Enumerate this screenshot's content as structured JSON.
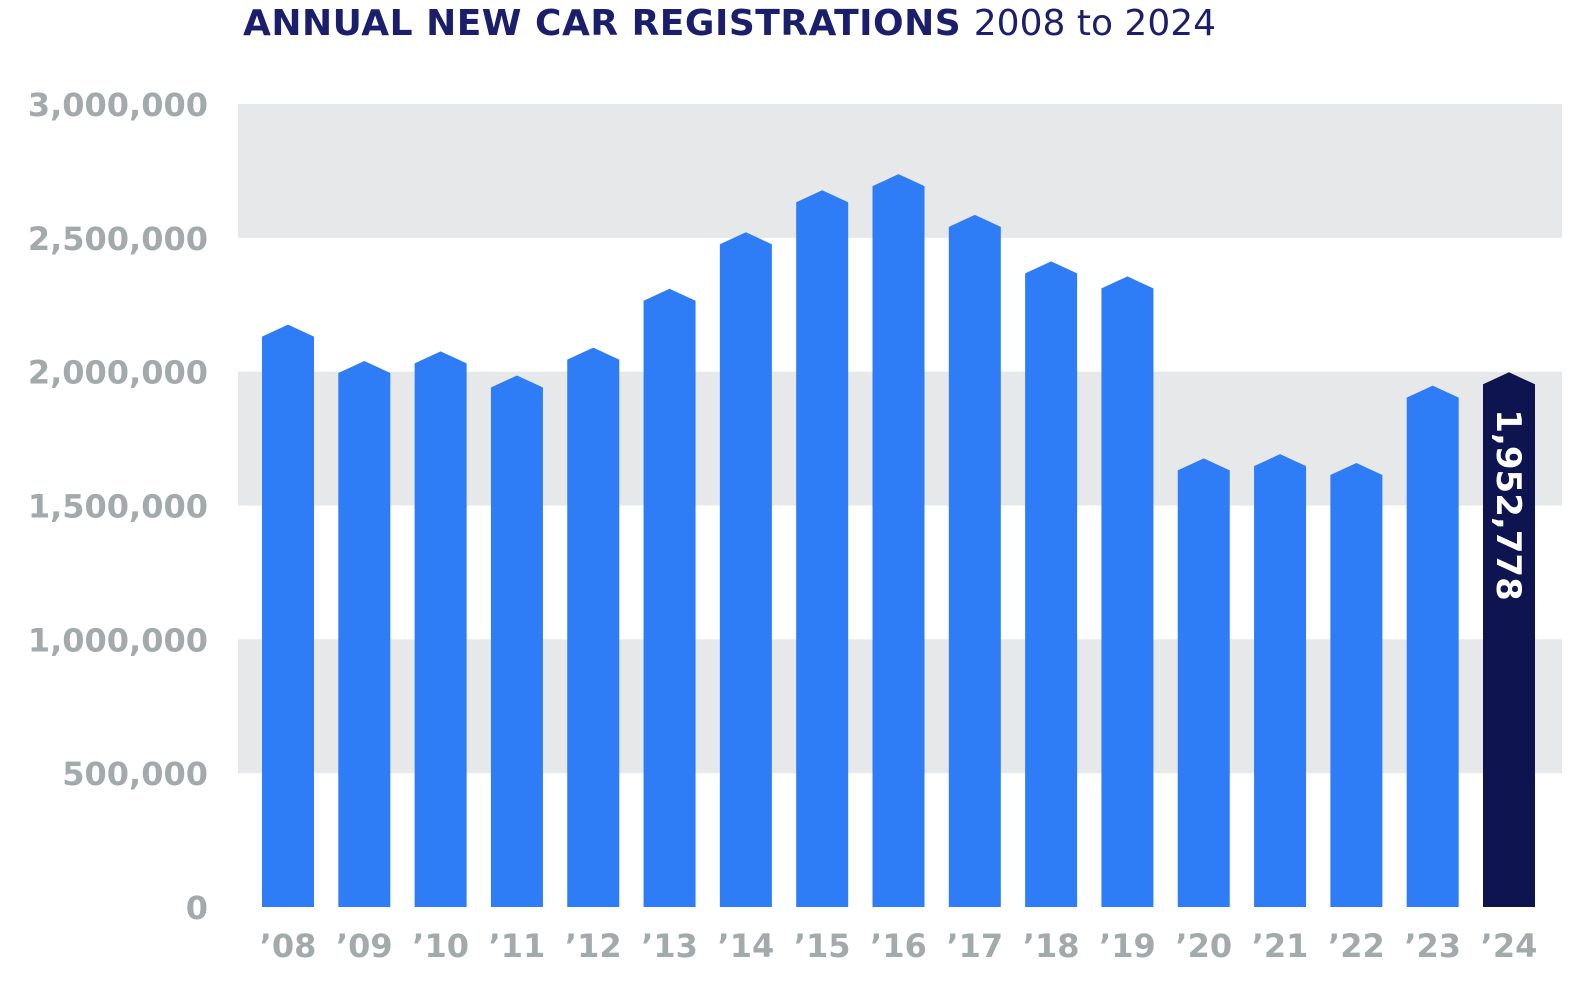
{
  "title": {
    "main": "ANNUAL NEW CAR REGISTRATIONS",
    "sub": "2008 to 2024"
  },
  "chart_data": {
    "type": "bar",
    "categories": [
      "’08",
      "’09",
      "’10",
      "’11",
      "’12",
      "’13",
      "’14",
      "’15",
      "’16",
      "’17",
      "’18",
      "’19",
      "’20",
      "’21",
      "’22",
      "’23",
      "’24"
    ],
    "values": [
      2131000,
      1995000,
      2031000,
      1941000,
      2045000,
      2265000,
      2476000,
      2633000,
      2693000,
      2541000,
      2367000,
      2311000,
      1631000,
      1647000,
      1614000,
      1903000,
      1952778
    ],
    "ylim": [
      0,
      3000000
    ],
    "yticks": [
      "0",
      "500,000",
      "1,000,000",
      "1,500,000",
      "2,000,000",
      "2,500,000",
      "3,000,000"
    ],
    "ytick_values": [
      0,
      500000,
      1000000,
      1500000,
      2000000,
      2500000,
      3000000
    ],
    "grid": "alternating horizontal bands",
    "colors": {
      "bar": "#2f7df6",
      "highlight": "#0d1450",
      "band": "#e6e8e9",
      "axis_text": "#a3aaac",
      "title": "#1b1f6b"
    },
    "highlight_index": 16,
    "data_labels": [
      {
        "index": 16,
        "text": "1,952,778"
      }
    ]
  }
}
